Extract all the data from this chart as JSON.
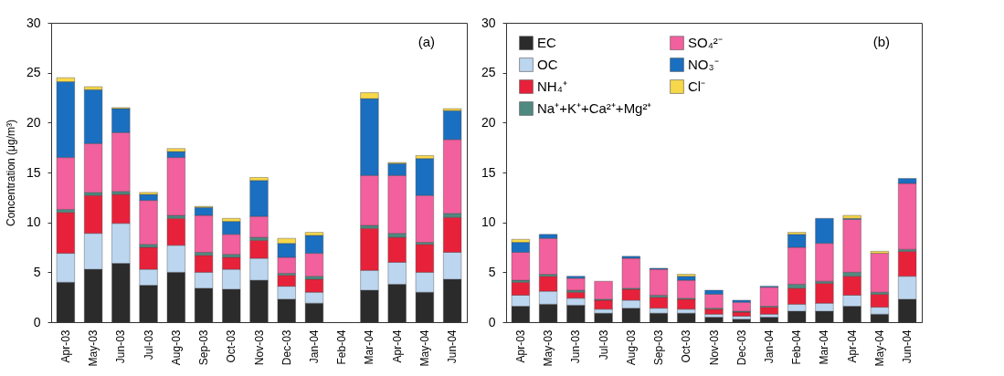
{
  "chart_data": [
    {
      "type": "bar",
      "stacked": true,
      "ylabel": "Concentration  (μg/m³)",
      "annotations": [
        "(a)"
      ],
      "categories": [
        "Apr-03",
        "May-03",
        "Jun-03",
        "Jul-03",
        "Aug-03",
        "Sep-03",
        "Oct-03",
        "Nov-03",
        "Dec-03",
        "Jan-04",
        "Feb-04",
        "Mar-04",
        "Apr-04",
        "May-04",
        "Jun-04"
      ],
      "ylim": [
        0,
        30
      ],
      "yticks": [
        0,
        5,
        10,
        15,
        20,
        25,
        30
      ],
      "series": [
        {
          "color": "#2b2b2b",
          "values": [
            4.0,
            5.3,
            5.9,
            3.7,
            5.0,
            3.4,
            3.3,
            4.2,
            2.3,
            1.9,
            null,
            3.2,
            3.8,
            3.0,
            4.3
          ]
        },
        {
          "color": "#bcd6f0",
          "values": [
            2.9,
            3.6,
            4.0,
            1.6,
            2.7,
            1.6,
            2.0,
            2.2,
            1.3,
            1.1,
            null,
            2.0,
            2.2,
            2.0,
            2.7
          ]
        },
        {
          "color": "#e8213a",
          "values": [
            4.1,
            3.8,
            2.9,
            2.2,
            2.7,
            1.7,
            1.2,
            1.8,
            1.1,
            1.3,
            null,
            4.2,
            2.5,
            2.8,
            3.5
          ]
        },
        {
          "color": "#4f8a80",
          "values": [
            0.3,
            0.3,
            0.3,
            0.3,
            0.3,
            0.3,
            0.3,
            0.3,
            0.2,
            0.3,
            null,
            0.3,
            0.4,
            0.2,
            0.4
          ]
        },
        {
          "color": "#f2609e",
          "values": [
            5.2,
            4.9,
            5.9,
            4.4,
            5.8,
            3.7,
            2.0,
            2.1,
            1.6,
            2.3,
            null,
            5.0,
            5.8,
            4.7,
            7.4
          ]
        },
        {
          "color": "#1a6fc0",
          "values": [
            7.6,
            5.4,
            2.4,
            0.6,
            0.6,
            0.8,
            1.3,
            3.6,
            1.4,
            1.8,
            null,
            7.7,
            1.2,
            3.7,
            2.9
          ]
        },
        {
          "color": "#f7d84a",
          "values": [
            0.4,
            0.3,
            0.1,
            0.2,
            0.3,
            0.1,
            0.3,
            0.3,
            0.5,
            0.3,
            null,
            0.6,
            0.1,
            0.3,
            0.2
          ]
        }
      ]
    },
    {
      "type": "bar",
      "stacked": true,
      "annotations": [
        "(b)"
      ],
      "legend": "top left",
      "categories": [
        "Apr-03",
        "May-03",
        "Jun-03",
        "Jul-03",
        "Aug-03",
        "Sep-03",
        "Oct-03",
        "Nov-03",
        "Dec-03",
        "Jan-04",
        "Feb-04",
        "Mar-04",
        "Apr-04",
        "May-04",
        "Jun-04"
      ],
      "ylim": [
        0,
        30
      ],
      "yticks": [
        0,
        5,
        10,
        15,
        20,
        25,
        30
      ],
      "series": [
        {
          "name": "EC",
          "color": "#2b2b2b",
          "values": [
            1.6,
            1.8,
            1.7,
            0.9,
            1.4,
            0.9,
            0.9,
            0.5,
            0.3,
            0.5,
            1.1,
            1.1,
            1.6,
            0.8,
            2.3
          ]
        },
        {
          "name": "OC",
          "color": "#bcd6f0",
          "values": [
            1.1,
            1.3,
            0.7,
            0.4,
            0.8,
            0.5,
            0.4,
            0.3,
            0.3,
            0.3,
            0.7,
            0.8,
            1.1,
            0.7,
            2.3
          ]
        },
        {
          "name": "NH₄⁺",
          "color": "#e8213a",
          "values": [
            1.3,
            1.5,
            0.6,
            0.9,
            1.1,
            1.1,
            1.0,
            0.5,
            0.4,
            0.7,
            1.6,
            2.0,
            1.9,
            1.3,
            2.5
          ]
        },
        {
          "name": "Na⁺+K⁺+Ca²⁺+Mg²⁺",
          "color": "#4f8a80",
          "values": [
            0.2,
            0.2,
            0.2,
            0.1,
            0.1,
            0.2,
            0.1,
            0.1,
            0.1,
            0.1,
            0.4,
            0.2,
            0.4,
            0.2,
            0.2
          ]
        },
        {
          "name": "SO₄²⁻",
          "color": "#f2609e",
          "values": [
            2.8,
            3.6,
            1.2,
            1.8,
            3.0,
            2.6,
            1.8,
            1.4,
            0.9,
            1.9,
            3.7,
            3.8,
            5.3,
            3.9,
            6.6
          ]
        },
        {
          "name": "NO₃⁻",
          "color": "#1a6fc0",
          "values": [
            1.0,
            0.4,
            0.2,
            null,
            0.2,
            0.1,
            0.4,
            0.4,
            0.2,
            0.1,
            1.3,
            2.5,
            0.1,
            null,
            0.5
          ]
        },
        {
          "name": "Cl⁻",
          "color": "#f7d84a",
          "values": [
            0.3,
            null,
            null,
            null,
            null,
            null,
            0.2,
            null,
            null,
            null,
            0.2,
            null,
            0.3,
            0.2,
            null
          ]
        }
      ]
    }
  ]
}
